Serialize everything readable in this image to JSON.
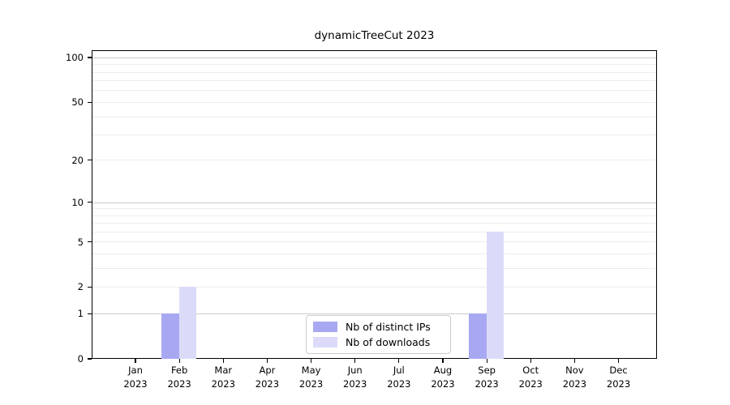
{
  "chart_data": {
    "type": "bar",
    "title": "dynamicTreeCut 2023",
    "x_month_labels": [
      "Jan",
      "Feb",
      "Mar",
      "Apr",
      "May",
      "Jun",
      "Jul",
      "Aug",
      "Sep",
      "Oct",
      "Nov",
      "Dec"
    ],
    "x_year_label": "2023",
    "series": [
      {
        "name": "Nb of distinct IPs",
        "color": "#a8a8f2",
        "values": [
          0,
          1,
          0,
          0,
          0,
          0,
          0,
          0,
          1,
          0,
          0,
          0
        ]
      },
      {
        "name": "Nb of downloads",
        "color": "#dbdbf9",
        "values": [
          0,
          2,
          0,
          0,
          0,
          0,
          0,
          0,
          6,
          0,
          0,
          0
        ]
      }
    ],
    "y_axis": {
      "scale": "log1p",
      "ticks": [
        0,
        1,
        2,
        5,
        10,
        20,
        50,
        100
      ],
      "max": 112,
      "major_gridlines": [
        1,
        10,
        100
      ],
      "minor_gridlines": [
        2,
        3,
        4,
        5,
        6,
        7,
        8,
        9,
        20,
        30,
        40,
        50,
        60,
        70,
        80,
        90
      ]
    },
    "ylim": [
      0,
      112
    ],
    "grid": "horizontal",
    "legend": {
      "entries": [
        "Nb of distinct IPs",
        "Nb of downloads"
      ],
      "position": "bottom-center"
    }
  },
  "colors": {
    "axis": "#000000",
    "grid_major": "#c9c9c9",
    "grid_minor": "#ececec",
    "legend_border": "#c9c9c9",
    "background": "#ffffff"
  }
}
